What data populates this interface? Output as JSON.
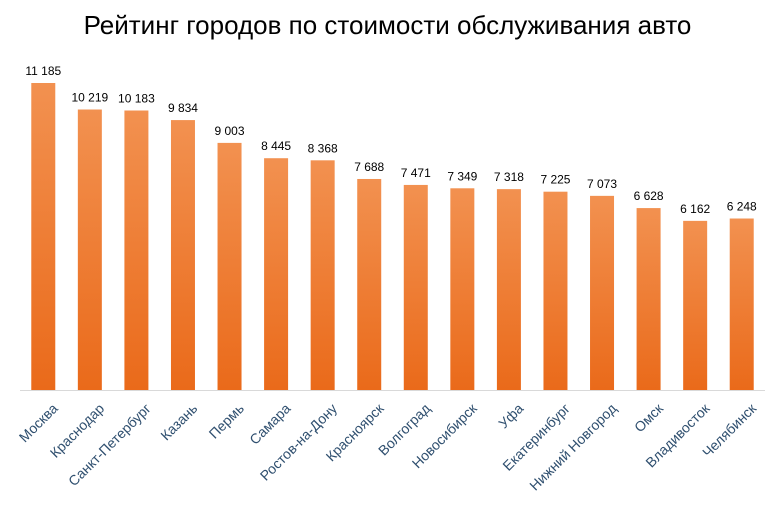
{
  "chart_data": {
    "type": "bar",
    "title": "Рейтинг городов по стоимости обслуживания авто",
    "xlabel": "",
    "ylabel": "",
    "categories": [
      "Москва",
      "Краснодар",
      "Санкт-Петербург",
      "Казань",
      "Пермь",
      "Самара",
      "Ростов-на-Дону",
      "Красноярск",
      "Волгоград",
      "Новосибирск",
      "Уфа",
      "Екатеринбург",
      "Нижний Новгород",
      "Омск",
      "Владивосток",
      "Челябинск"
    ],
    "values": [
      11185,
      10219,
      10183,
      9834,
      9003,
      8445,
      8368,
      7688,
      7471,
      7349,
      7318,
      7225,
      7073,
      6628,
      6162,
      6248
    ],
    "value_labels": [
      "11 185",
      "10 219",
      "10 183",
      "9 834",
      "9 003",
      "8 445",
      "8 368",
      "7 688",
      "7 471",
      "7 349",
      "7 318",
      "7 225",
      "7 073",
      "6 628",
      "6 162",
      "6 248"
    ],
    "ylim": [
      0,
      11185
    ],
    "grid": false,
    "legend": "none",
    "colors": {
      "bar_top": "#F29150",
      "bar_bottom": "#EA6A1A",
      "axis": "#D9D9D9",
      "category_text": "#2F4F6F",
      "value_text": "#000000"
    }
  }
}
